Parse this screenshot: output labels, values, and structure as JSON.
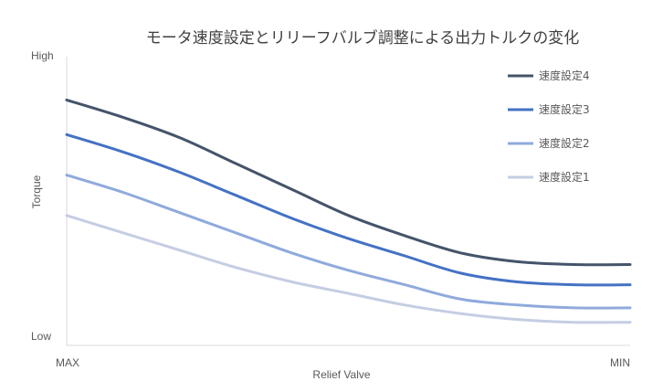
{
  "chart_data": {
    "type": "line",
    "title": "モータ速度設定とリリーフバルブ調整による出力トルクの変化",
    "xlabel": "Relief Valve",
    "ylabel": "Torque",
    "x_tick_labels": [
      "MAX",
      "MIN"
    ],
    "y_tick_labels": [
      "Low",
      "High"
    ],
    "x": [
      0,
      0.1,
      0.2,
      0.3,
      0.4,
      0.5,
      0.6,
      0.7,
      0.8,
      0.9,
      1.0
    ],
    "xlim": [
      0,
      1
    ],
    "ylim": [
      0,
      1
    ],
    "grid": false,
    "legend_position": "right",
    "series": [
      {
        "name": "速度設定4",
        "color": "#44546a",
        "values": [
          0.85,
          0.79,
          0.72,
          0.63,
          0.54,
          0.45,
          0.38,
          0.32,
          0.29,
          0.28,
          0.28
        ]
      },
      {
        "name": "速度設定3",
        "color": "#4472c4",
        "values": [
          0.73,
          0.67,
          0.6,
          0.52,
          0.44,
          0.37,
          0.31,
          0.25,
          0.22,
          0.21,
          0.21
        ]
      },
      {
        "name": "速度設定2",
        "color": "#8faadc",
        "values": [
          0.59,
          0.53,
          0.46,
          0.39,
          0.32,
          0.26,
          0.21,
          0.16,
          0.14,
          0.13,
          0.13
        ]
      },
      {
        "name": "速度設定1",
        "color": "#c5cde3",
        "values": [
          0.45,
          0.39,
          0.33,
          0.27,
          0.22,
          0.18,
          0.14,
          0.11,
          0.09,
          0.08,
          0.08
        ]
      }
    ]
  }
}
